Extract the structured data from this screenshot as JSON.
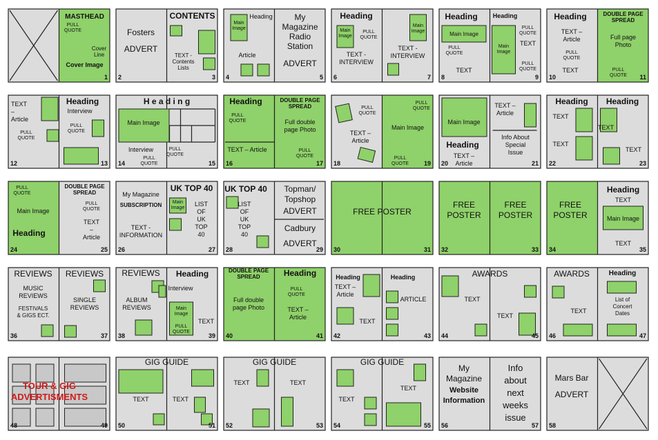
{
  "colors": {
    "green": "#8fd16a",
    "grey": "#dcdcdc",
    "red": "#d11a1a",
    "block": "#c8c8c8",
    "stroke": "#222222"
  },
  "spreads": [
    {
      "left": {
        "type": "cross",
        "texts": []
      },
      "right": {
        "bg": "green",
        "num": "1",
        "texts": [
          {
            "text": "MASTHEAD",
            "bold": true
          },
          {
            "text": "PULL QUOTE"
          },
          {
            "text": "Cover Line"
          },
          {
            "text": "Cover Image",
            "bold": true
          }
        ]
      }
    },
    {
      "left": {
        "num": "2",
        "texts": [
          {
            "text": "Fosters"
          },
          {
            "text": "ADVERT"
          }
        ]
      },
      "right": {
        "num": "3",
        "texts": [
          {
            "text": "CONTENTS",
            "bold": true
          },
          {
            "text": "TEXT - Contents Lists"
          }
        ]
      }
    },
    {
      "left": {
        "num": "4",
        "texts": [
          {
            "text": "Heading"
          },
          {
            "text": "Main Image"
          },
          {
            "text": "Article"
          }
        ]
      },
      "right": {
        "num": "5",
        "texts": [
          {
            "text": "My Magazine Radio Station"
          },
          {
            "text": "ADVERT"
          }
        ]
      }
    },
    {
      "left": {
        "num": "6",
        "texts": [
          {
            "text": "Heading",
            "bold": true
          },
          {
            "text": "Main Image"
          },
          {
            "text": "PULL QUOTE"
          },
          {
            "text": "TEXT - INTERVIEW"
          }
        ]
      },
      "right": {
        "num": "7",
        "texts": [
          {
            "text": "Main Image"
          },
          {
            "text": "TEXT - INTERVIEW"
          }
        ]
      }
    },
    {
      "left": {
        "num": "8",
        "texts": [
          {
            "text": "Heading",
            "bold": true
          },
          {
            "text": "Main Image"
          },
          {
            "text": "PULL QUOTE"
          },
          {
            "text": "TEXT"
          }
        ]
      },
      "right": {
        "num": "9",
        "texts": [
          {
            "text": "Heading",
            "bold": true
          },
          {
            "text": "PULL QUOTE"
          },
          {
            "text": "Main Image"
          },
          {
            "text": "TEXT"
          },
          {
            "text": "PULL QUOTE"
          }
        ]
      }
    },
    {
      "left": {
        "num": "10",
        "texts": [
          {
            "text": "Heading",
            "bold": true
          },
          {
            "text": "TEXT – Article"
          },
          {
            "text": "PULL QUOTE"
          },
          {
            "text": "TEXT"
          }
        ]
      },
      "right": {
        "bg": "green",
        "num": "11",
        "texts": [
          {
            "text": "DOUBLE PAGE SPREAD",
            "bold": true
          },
          {
            "text": "Full page Photo"
          },
          {
            "text": "PULL QUOTE"
          }
        ]
      }
    },
    {
      "left": {
        "num": "12",
        "texts": [
          {
            "text": "TEXT – Article"
          },
          {
            "text": "PULL QUOTE"
          }
        ]
      },
      "right": {
        "num": "13",
        "texts": [
          {
            "text": "Heading",
            "bold": true
          },
          {
            "text": "Interview"
          },
          {
            "text": "PULL QUOTE"
          }
        ]
      }
    },
    {
      "left": {
        "num": "14",
        "texts": [
          {
            "text": "Main Image"
          },
          {
            "text": "Interview"
          },
          {
            "text": "PULL QUOTE"
          }
        ]
      },
      "right": {
        "num": "15",
        "texts": [
          {
            "text": "PULL QUOTE"
          }
        ]
      },
      "texts": [
        {
          "text": "H e a d i n g",
          "bold": true
        }
      ]
    },
    {
      "left": {
        "bg": "green",
        "num": "16",
        "texts": [
          {
            "text": "Heading",
            "bold": true
          },
          {
            "text": "PULL QUOTE"
          },
          {
            "text": "TEXT – Article"
          }
        ]
      },
      "right": {
        "bg": "green",
        "num": "17",
        "texts": [
          {
            "text": "DOUBLE PAGE SPREAD",
            "bold": true
          },
          {
            "text": "Full double page Photo"
          },
          {
            "text": "PULL QUOTE"
          }
        ]
      }
    },
    {
      "left": {
        "num": "18",
        "texts": [
          {
            "text": "PULL QUOTE"
          },
          {
            "text": "TEXT – Article"
          }
        ]
      },
      "right": {
        "bg": "green",
        "num": "19",
        "texts": [
          {
            "text": "PULL QUOTE"
          },
          {
            "text": "Main Image"
          },
          {
            "text": "PULL QUOTE"
          }
        ]
      }
    },
    {
      "left": {
        "num": "20",
        "texts": [
          {
            "text": "Main Image"
          },
          {
            "text": "Heading",
            "bold": true
          },
          {
            "text": "TEXT – Article"
          }
        ]
      },
      "right": {
        "num": "21",
        "texts": [
          {
            "text": "TEXT – Article"
          },
          {
            "text": "Info About Special Issue"
          }
        ]
      }
    },
    {
      "left": {
        "num": "22",
        "texts": [
          {
            "text": "Heading",
            "bold": true
          },
          {
            "text": "TEXT"
          },
          {
            "text": "TEXT"
          }
        ]
      },
      "right": {
        "num": "23",
        "texts": [
          {
            "text": "Heading",
            "bold": true
          },
          {
            "text": "TEXT"
          },
          {
            "text": "TEXT"
          }
        ]
      }
    },
    {
      "left": {
        "bg": "green",
        "num": "24",
        "texts": [
          {
            "text": "PULL QUOTE"
          },
          {
            "text": "Main Image"
          },
          {
            "text": "Heading",
            "bold": true
          }
        ]
      },
      "right": {
        "num": "25",
        "texts": [
          {
            "text": "DOUBLE PAGE SPREAD",
            "bold": true
          },
          {
            "text": "PULL QUOTE"
          },
          {
            "text": "TEXT – Article"
          }
        ]
      }
    },
    {
      "left": {
        "num": "26",
        "texts": [
          {
            "text": "My Magazine"
          },
          {
            "text": "SUBSCRIPTION",
            "bold": true
          },
          {
            "text": "TEXT - INFORMATION"
          }
        ]
      },
      "right": {
        "num": "27",
        "texts": [
          {
            "text": "UK TOP 40",
            "bold": true
          },
          {
            "text": "Main Image"
          },
          {
            "text": "LIST OF UK TOP 40"
          }
        ]
      }
    },
    {
      "left": {
        "num": "28",
        "texts": [
          {
            "text": "UK TOP 40",
            "bold": true
          },
          {
            "text": "LIST OF UK TOP 40"
          }
        ]
      },
      "right": {
        "num": "29",
        "texts": [
          {
            "text": "Topman/ Topshop"
          },
          {
            "text": "ADVERT"
          },
          {
            "text": "Cadbury"
          },
          {
            "text": "ADVERT"
          }
        ]
      }
    },
    {
      "left": {
        "bg": "green",
        "num": "30",
        "texts": []
      },
      "right": {
        "bg": "green",
        "num": "31",
        "texts": []
      },
      "texts": [
        {
          "text": "FREE POSTER"
        }
      ]
    },
    {
      "left": {
        "bg": "green",
        "num": "32",
        "texts": [
          {
            "text": "FREE POSTER"
          }
        ]
      },
      "right": {
        "bg": "green",
        "num": "33",
        "texts": [
          {
            "text": "FREE POSTER"
          }
        ]
      }
    },
    {
      "left": {
        "bg": "green",
        "num": "34",
        "texts": [
          {
            "text": "FREE POSTER"
          }
        ]
      },
      "right": {
        "num": "35",
        "texts": [
          {
            "text": "Heading",
            "bold": true
          },
          {
            "text": "TEXT"
          },
          {
            "text": "Main Image"
          },
          {
            "text": "TEXT"
          }
        ]
      }
    },
    {
      "left": {
        "num": "36",
        "texts": [
          {
            "text": "REVIEWS"
          },
          {
            "text": "MUSIC REVIEWS"
          },
          {
            "text": "FESTIVALS & GIGS ECT."
          }
        ]
      },
      "right": {
        "num": "37",
        "texts": [
          {
            "text": "REVIEWS"
          },
          {
            "text": "SINGLE REVIEWS"
          }
        ]
      }
    },
    {
      "left": {
        "num": "38",
        "texts": [
          {
            "text": "REVIEWS"
          },
          {
            "text": "ALBUM REVIEWS"
          }
        ]
      },
      "right": {
        "num": "39",
        "texts": [
          {
            "text": "Heading",
            "bold": true
          },
          {
            "text": "Interview"
          },
          {
            "text": "Main Image"
          },
          {
            "text": "PULL QUOTE"
          },
          {
            "text": "TEXT"
          }
        ]
      }
    },
    {
      "left": {
        "bg": "green",
        "num": "40",
        "texts": [
          {
            "text": "DOUBLE PAGE SPREAD",
            "bold": true
          },
          {
            "text": "Full double page Photo"
          }
        ]
      },
      "right": {
        "bg": "green",
        "num": "41",
        "texts": [
          {
            "text": "Heading",
            "bold": true
          },
          {
            "text": "PULL QUOTE"
          },
          {
            "text": "TEXT – Article"
          }
        ]
      }
    },
    {
      "left": {
        "num": "42",
        "texts": [
          {
            "text": "Heading",
            "bold": true
          },
          {
            "text": "TEXT – Article"
          },
          {
            "text": "TEXT"
          }
        ]
      },
      "right": {
        "num": "43",
        "texts": [
          {
            "text": "Heading",
            "bold": true
          },
          {
            "text": "ARTICLE"
          }
        ]
      }
    },
    {
      "left": {
        "num": "44",
        "texts": [
          {
            "text": "TEXT"
          }
        ]
      },
      "right": {
        "num": "45",
        "texts": [
          {
            "text": "TEXT"
          }
        ]
      },
      "texts": [
        {
          "text": "AWARDS"
        }
      ]
    },
    {
      "left": {
        "num": "46",
        "texts": [
          {
            "text": "AWARDS"
          },
          {
            "text": "TEXT"
          }
        ]
      },
      "right": {
        "num": "47",
        "texts": [
          {
            "text": "Heading",
            "bold": true
          },
          {
            "text": "List of Concert Dates"
          }
        ]
      }
    },
    {
      "left": {
        "num": "48",
        "texts": []
      },
      "right": {
        "num": "49",
        "texts": []
      },
      "texts": [
        {
          "text": "TOUR & GIG ADVERTISMENTS",
          "bold": true,
          "red": true
        }
      ]
    },
    {
      "left": {
        "num": "50",
        "texts": [
          {
            "text": "TEXT"
          }
        ]
      },
      "right": {
        "num": "51",
        "texts": [
          {
            "text": "TEXT"
          }
        ]
      },
      "texts": [
        {
          "text": "GIG GUIDE"
        }
      ]
    },
    {
      "left": {
        "num": "52",
        "texts": [
          {
            "text": "TEXT"
          }
        ]
      },
      "right": {
        "num": "53",
        "texts": [
          {
            "text": "TEXT"
          }
        ]
      },
      "texts": [
        {
          "text": "GIG GUIDE"
        }
      ]
    },
    {
      "left": {
        "num": "54",
        "texts": [
          {
            "text": "TEXT"
          }
        ]
      },
      "right": {
        "num": "55",
        "texts": [
          {
            "text": "TEXT"
          }
        ]
      },
      "texts": [
        {
          "text": "GIG GUIDE"
        }
      ]
    },
    {
      "left": {
        "num": "56",
        "texts": [
          {
            "text": "My Magazine"
          },
          {
            "text": "Website Information",
            "bold": true
          }
        ]
      },
      "right": {
        "num": "57",
        "texts": [
          {
            "text": "Info about next weeks issue"
          }
        ]
      }
    },
    {
      "left": {
        "num": "58",
        "texts": [
          {
            "text": "Mars Bar"
          },
          {
            "text": "ADVERT"
          }
        ]
      },
      "right": {
        "type": "cross",
        "texts": []
      }
    }
  ]
}
